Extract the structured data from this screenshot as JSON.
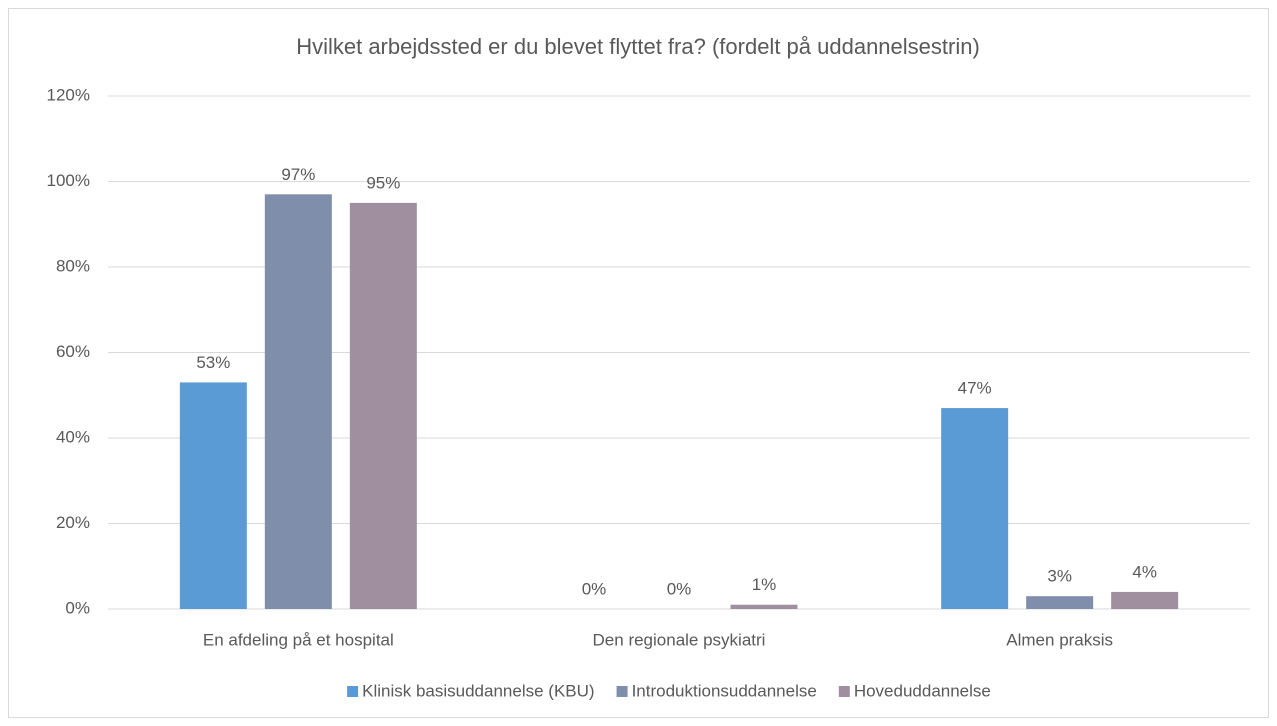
{
  "chart_data": {
    "type": "bar",
    "title": "Hvilket arbejdssted er du blevet flyttet fra? (fordelt på uddannelsestrin)",
    "categories": [
      "En afdeling på et hospital",
      "Den regionale psykiatri",
      "Almen praksis"
    ],
    "series": [
      {
        "name": "Klinisk basisuddannelse (KBU)",
        "color": "#5b9bd5",
        "values": [
          53,
          0,
          47
        ],
        "value_labels": [
          "53%",
          "0%",
          "47%"
        ]
      },
      {
        "name": "Introduktionsuddannelse",
        "color": "#7f8fab",
        "values": [
          97,
          0,
          3
        ],
        "value_labels": [
          "97%",
          "0%",
          "3%"
        ]
      },
      {
        "name": "Hoveduddannelse",
        "color": "#a08f9f",
        "values": [
          95,
          1,
          4
        ],
        "value_labels": [
          "95%",
          "1%",
          "4%"
        ]
      }
    ],
    "ylim": [
      0,
      120
    ],
    "yticks": [
      {
        "value": 0,
        "label": "0%"
      },
      {
        "value": 20,
        "label": "20%"
      },
      {
        "value": 40,
        "label": "40%"
      },
      {
        "value": 60,
        "label": "60%"
      },
      {
        "value": 80,
        "label": "80%"
      },
      {
        "value": 100,
        "label": "100%"
      },
      {
        "value": 120,
        "label": "120%"
      }
    ],
    "grid": true,
    "legend": "bottom"
  }
}
